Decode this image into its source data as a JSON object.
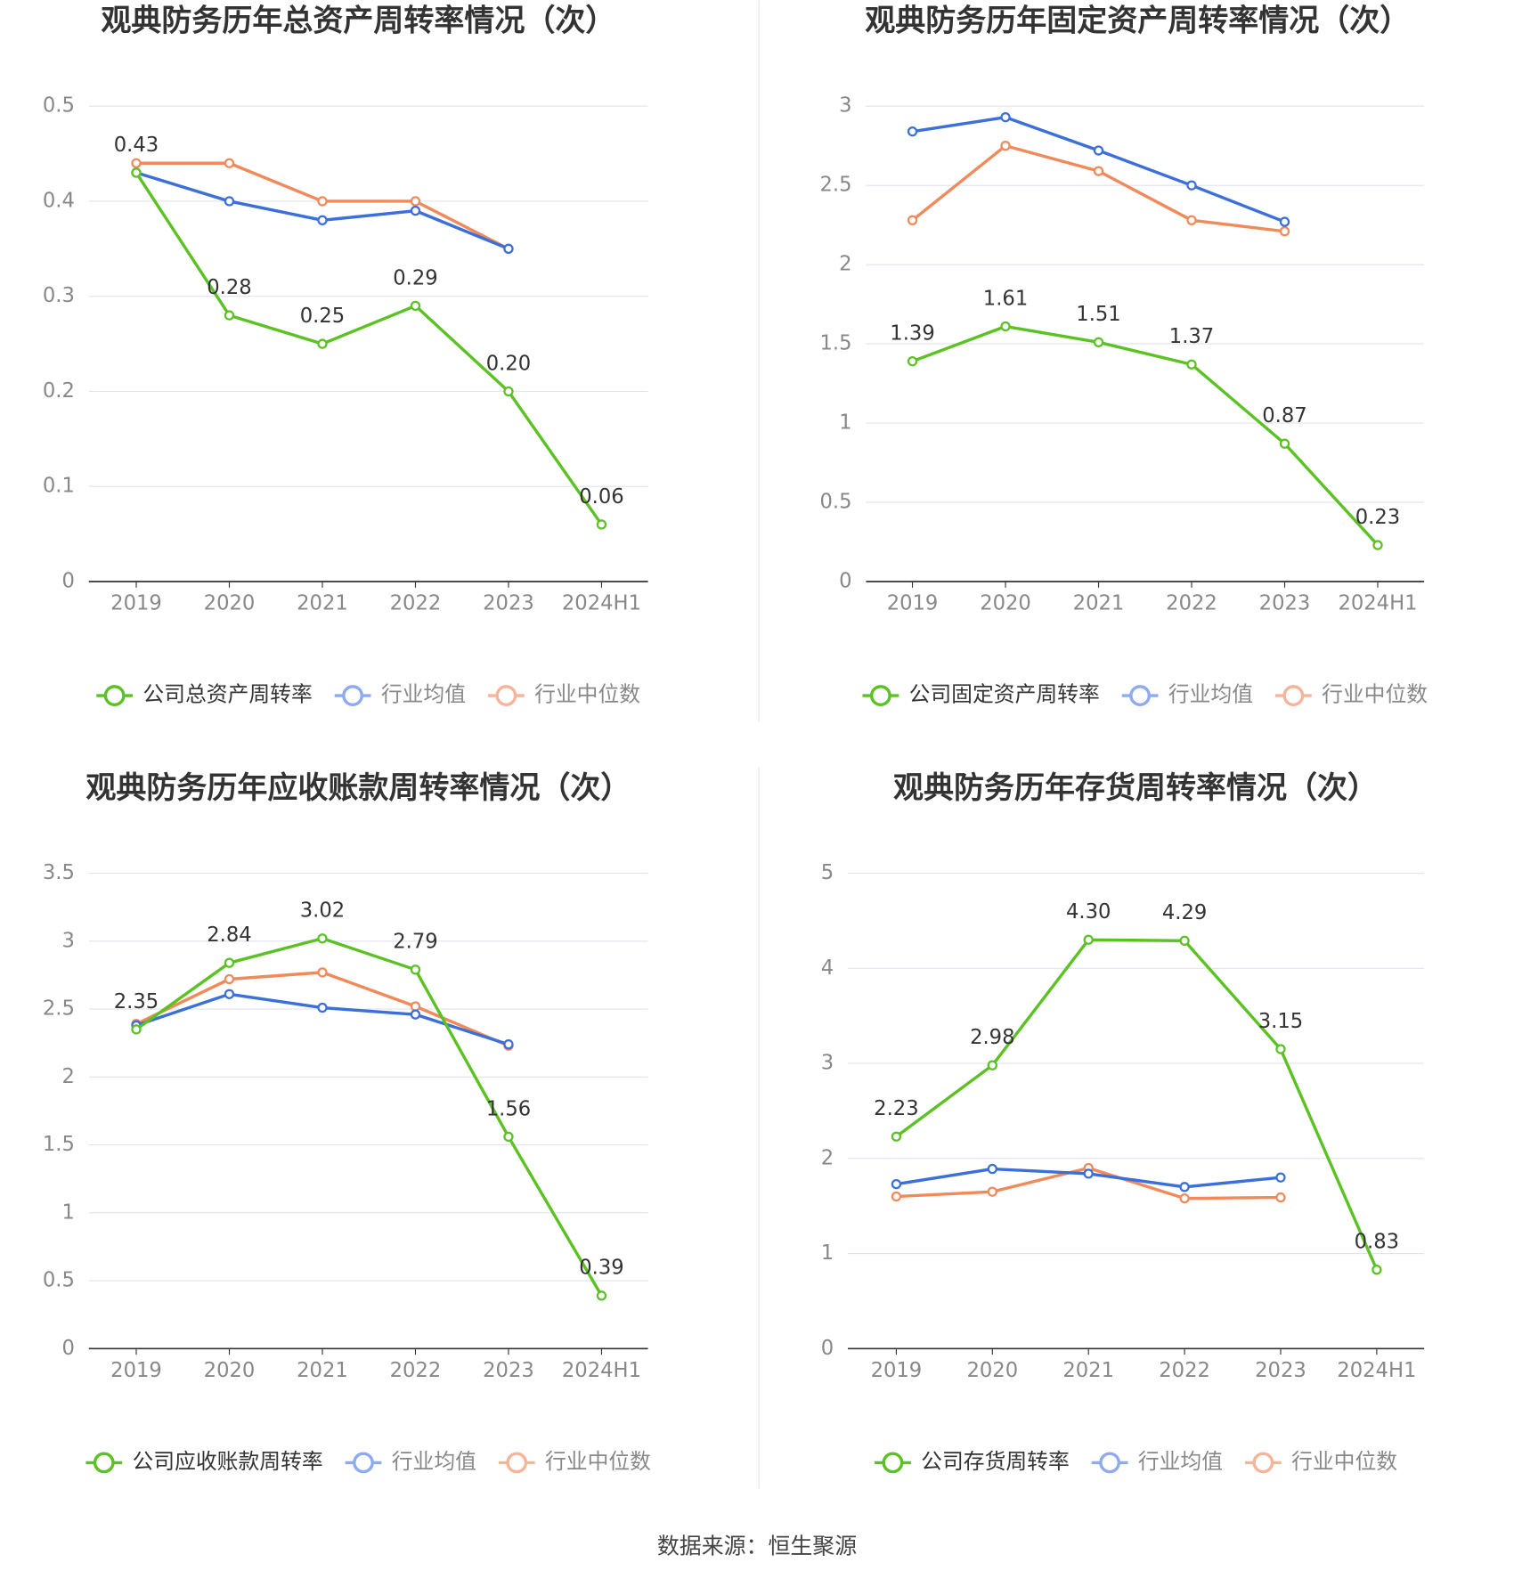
{
  "chart_data": [
    {
      "type": "line",
      "title": "观典防务历年总资产周转率情况（次）",
      "categories": [
        "2019",
        "2020",
        "2021",
        "2022",
        "2023",
        "2024H1"
      ],
      "series": [
        {
          "name": "公司总资产周转率",
          "color": "#5bc223",
          "values": [
            0.43,
            0.28,
            0.25,
            0.29,
            0.2,
            0.06
          ],
          "value_labels": [
            "0.43",
            "0.28",
            "0.25",
            "0.29",
            "0.20",
            "0.06"
          ]
        },
        {
          "name": "行业均值",
          "color": "#3b6fd9",
          "values": [
            0.43,
            0.4,
            0.38,
            0.39,
            0.35,
            null
          ]
        },
        {
          "name": "行业中位数",
          "color": "#f08a5b",
          "values": [
            0.44,
            0.44,
            0.4,
            0.4,
            0.35,
            null
          ]
        }
      ],
      "ylim": [
        0,
        0.5
      ],
      "yticks": [
        0,
        0.1,
        0.2,
        0.3,
        0.4,
        0.5
      ]
    },
    {
      "type": "line",
      "title": "观典防务历年固定资产周转率情况（次）",
      "categories": [
        "2019",
        "2020",
        "2021",
        "2022",
        "2023",
        "2024H1"
      ],
      "series": [
        {
          "name": "公司固定资产周转率",
          "color": "#5bc223",
          "values": [
            1.39,
            1.61,
            1.51,
            1.37,
            0.87,
            0.23
          ]
        },
        {
          "name": "行业均值",
          "color": "#3b6fd9",
          "values": [
            2.84,
            2.93,
            2.72,
            2.5,
            2.27,
            null
          ]
        },
        {
          "name": "行业中位数",
          "color": "#f08a5b",
          "values": [
            2.28,
            2.75,
            2.59,
            2.28,
            2.21,
            null
          ]
        }
      ],
      "ylim": [
        0,
        3
      ],
      "yticks": [
        0,
        0.5,
        1,
        1.5,
        2,
        2.5,
        3
      ]
    },
    {
      "type": "line",
      "title": "观典防务历年应收账款周转率情况（次）",
      "categories": [
        "2019",
        "2020",
        "2021",
        "2022",
        "2023",
        "2024H1"
      ],
      "series": [
        {
          "name": "公司应收账款周转率",
          "color": "#5bc223",
          "values": [
            2.35,
            2.84,
            3.02,
            2.79,
            1.56,
            0.39
          ]
        },
        {
          "name": "行业均值",
          "color": "#3b6fd9",
          "values": [
            2.38,
            2.61,
            2.51,
            2.46,
            2.24,
            null
          ]
        },
        {
          "name": "行业中位数",
          "color": "#f08a5b",
          "values": [
            2.39,
            2.72,
            2.77,
            2.52,
            2.23,
            null
          ]
        }
      ],
      "ylim": [
        0,
        3.5
      ],
      "yticks": [
        0,
        0.5,
        1,
        1.5,
        2,
        2.5,
        3,
        3.5
      ]
    },
    {
      "type": "line",
      "title": "观典防务历年存货周转率情况（次）",
      "categories": [
        "2019",
        "2020",
        "2021",
        "2022",
        "2023",
        "2024H1"
      ],
      "series": [
        {
          "name": "公司存货周转率",
          "color": "#5bc223",
          "values": [
            2.23,
            2.98,
            4.3,
            4.29,
            3.15,
            0.83
          ],
          "value_labels": [
            "2.23",
            "2.98",
            "4.30",
            "4.29",
            "3.15",
            "0.83"
          ]
        },
        {
          "name": "行业均值",
          "color": "#3b6fd9",
          "values": [
            1.73,
            1.89,
            1.84,
            1.7,
            1.8,
            null
          ]
        },
        {
          "name": "行业中位数",
          "color": "#f08a5b",
          "values": [
            1.6,
            1.65,
            1.9,
            1.58,
            1.59,
            null
          ]
        }
      ],
      "ylim": [
        0,
        5
      ],
      "yticks": [
        0,
        1,
        2,
        3,
        4,
        5
      ]
    }
  ],
  "source": "数据来源：恒生聚源"
}
